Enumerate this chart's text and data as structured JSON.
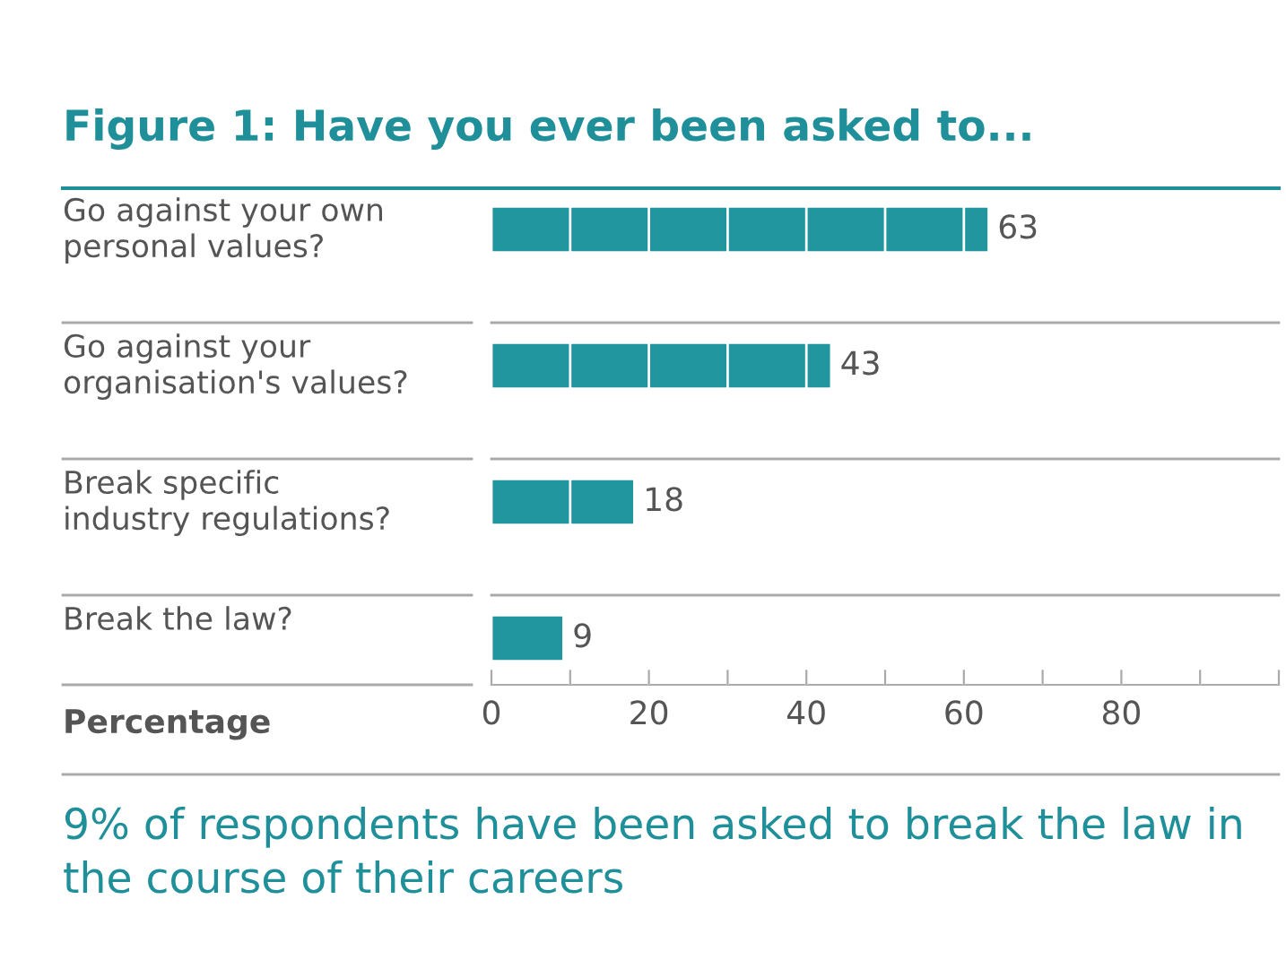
{
  "chart_data": {
    "type": "bar",
    "orientation": "horizontal",
    "title": "Figure 1: Have you ever been asked to...",
    "categories": [
      "Go against your own\npersonal values?",
      "Go against your\norganisation's values?",
      "Break specific\nindustry regulations?",
      "Break the law?"
    ],
    "values": [
      63,
      43,
      18,
      9
    ],
    "color": "#21969e",
    "data_labels": true,
    "xlabel": "Percentage",
    "xlim": [
      0,
      100
    ],
    "xticks": [
      0,
      {
        "value": 10,
        "label": null
      },
      20,
      {
        "value": 30,
        "label": null
      },
      40,
      {
        "value": 50,
        "label": null
      },
      60,
      {
        "value": 70,
        "label": null
      },
      80,
      {
        "value": 90,
        "label": null
      },
      {
        "value": 100,
        "label": null
      }
    ],
    "grid": "x",
    "annotations": [
      "9% of respondents have been asked to break the law in the course of their careers"
    ]
  }
}
